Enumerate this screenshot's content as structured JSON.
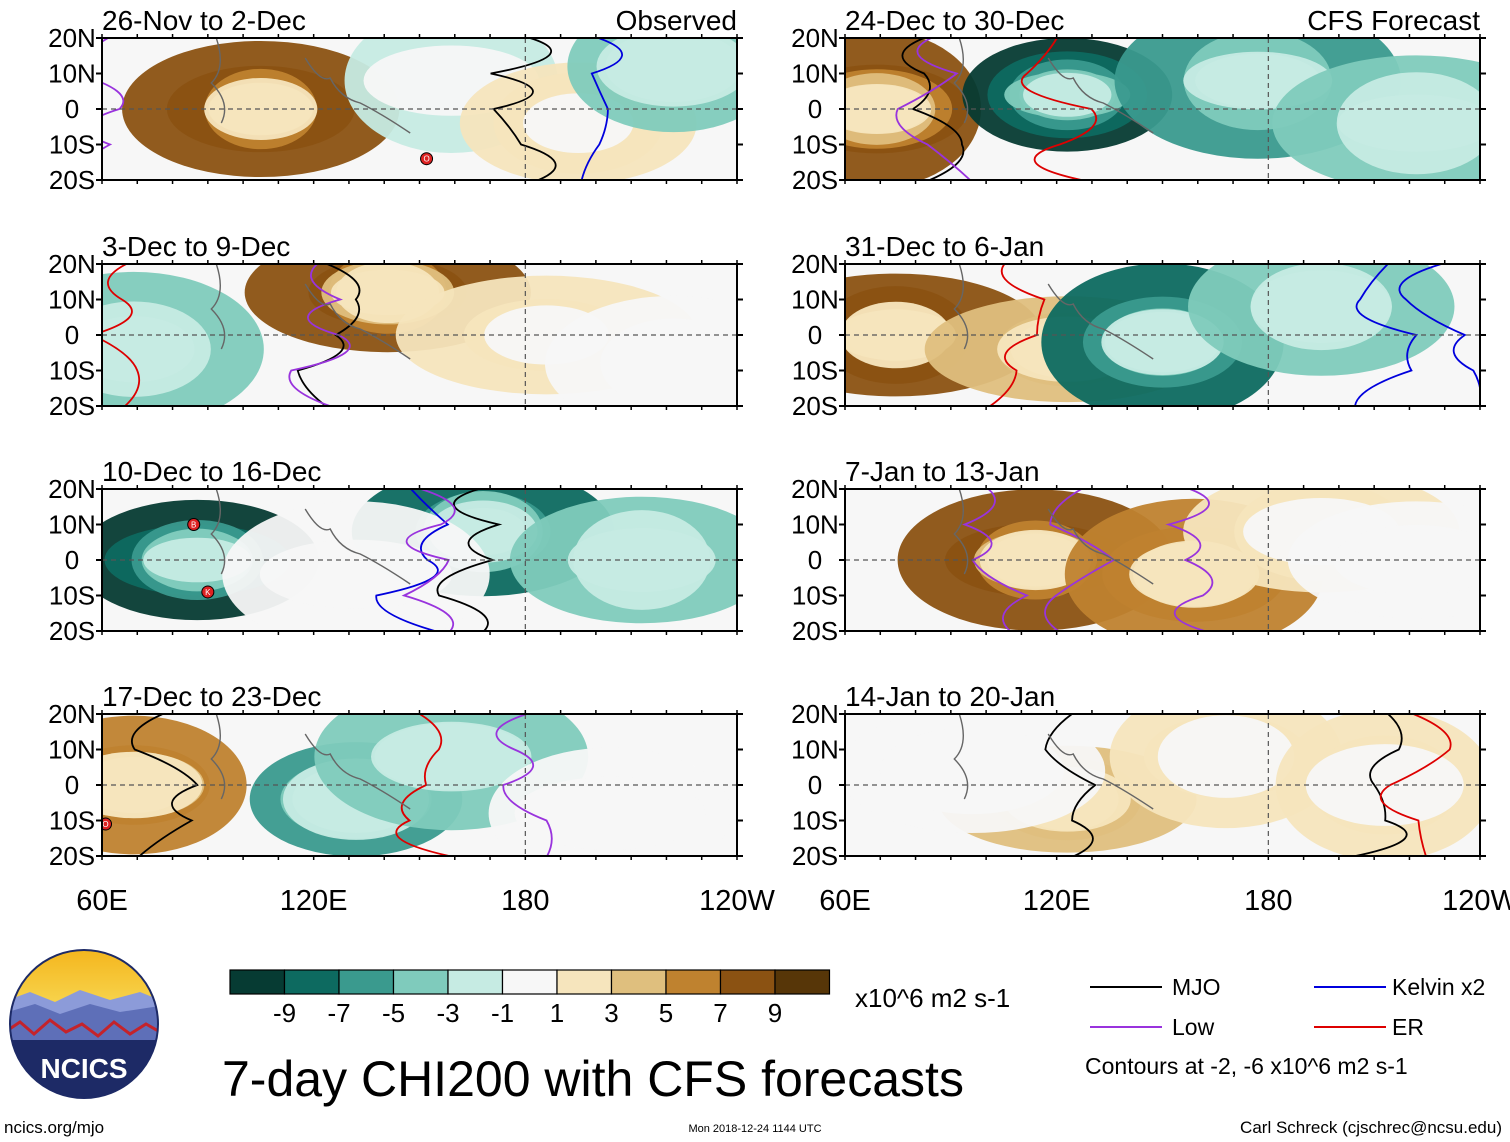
{
  "chart_data": {
    "type": "heatmap",
    "title": "7-day CHI200 with CFS forecasts",
    "units": "x10^6 m2 s-1",
    "latitude_ticks": [
      "20N",
      "10N",
      "0",
      "10S",
      "20S"
    ],
    "longitude_ticks": [
      "60E",
      "120E",
      "180",
      "120W"
    ],
    "colorbar": {
      "levels": [
        "-9",
        "-7",
        "-5",
        "-3",
        "-1",
        "1",
        "3",
        "5",
        "7",
        "9"
      ],
      "colors": [
        "#063b33",
        "#0d6a60",
        "#3a9a8e",
        "#7fcbbc",
        "#c6ebe3",
        "#f7f7f7",
        "#f6e5bd",
        "#dfbf7e",
        "#bf822f",
        "#8b5212",
        "#573608"
      ]
    },
    "panels": [
      {
        "column": "left",
        "title": "26-Nov to 2-Dec",
        "tag": "Observed",
        "cyclones": [
          {
            "lon": 152,
            "lat": -14,
            "letter": "O"
          }
        ]
      },
      {
        "column": "left",
        "title": "3-Dec to 9-Dec",
        "tag": "",
        "cyclones": []
      },
      {
        "column": "left",
        "title": "10-Dec to 16-Dec",
        "tag": "",
        "cyclones": [
          {
            "lon": 86,
            "lat": 10,
            "letter": "B"
          },
          {
            "lon": 90,
            "lat": -9,
            "letter": "K"
          }
        ]
      },
      {
        "column": "left",
        "title": "17-Dec to 23-Dec",
        "tag": "",
        "cyclones": [
          {
            "lon": 61,
            "lat": -11,
            "letter": "O"
          }
        ]
      },
      {
        "column": "right",
        "title": "24-Dec to 30-Dec",
        "tag": "CFS Forecast",
        "cyclones": []
      },
      {
        "column": "right",
        "title": "31-Dec to 6-Jan",
        "tag": "",
        "cyclones": []
      },
      {
        "column": "right",
        "title": "7-Jan to 13-Jan",
        "tag": "",
        "cyclones": []
      },
      {
        "column": "right",
        "title": "14-Jan to 20-Jan",
        "tag": "",
        "cyclones": []
      }
    ],
    "legend": [
      {
        "label": "MJO",
        "color": "#000000"
      },
      {
        "label": "Kelvin x2",
        "color": "#0000dd"
      },
      {
        "label": "Low",
        "color": "#9933dd"
      },
      {
        "label": "ER",
        "color": "#dd0000"
      }
    ],
    "contour_note": "Contours at -2, -6 x10^6 m2 s-1"
  },
  "logo": {
    "text": "NCICS"
  },
  "footer": {
    "left": "ncics.org/mjo",
    "center": "Mon 2018-12-24 1144 UTC",
    "right": "Carl Schreck (cjschrec@ncsu.edu)"
  }
}
